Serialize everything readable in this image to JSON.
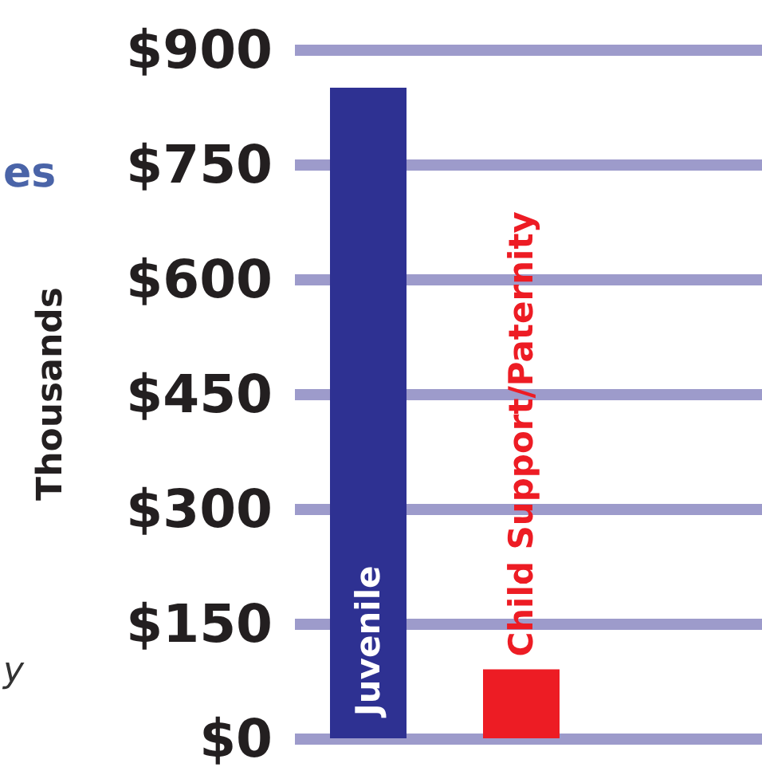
{
  "chart_data": {
    "type": "bar",
    "ylabel": "Thousands",
    "categories": [
      "Juvenile",
      "Child Support/Paternity"
    ],
    "values": [
      850,
      90
    ],
    "colors": [
      "#2e3192",
      "#ed1c24"
    ],
    "ylim": [
      0,
      900
    ],
    "yticks": [
      {
        "value": 0,
        "label": "$0"
      },
      {
        "value": 150,
        "label": "$150"
      },
      {
        "value": 300,
        "label": "$300"
      },
      {
        "value": 450,
        "label": "$450"
      },
      {
        "value": 600,
        "label": "$600"
      },
      {
        "value": 750,
        "label": "$750"
      },
      {
        "value": 900,
        "label": "$900"
      }
    ],
    "grid": "y",
    "annotations": [
      "es",
      "y"
    ]
  }
}
